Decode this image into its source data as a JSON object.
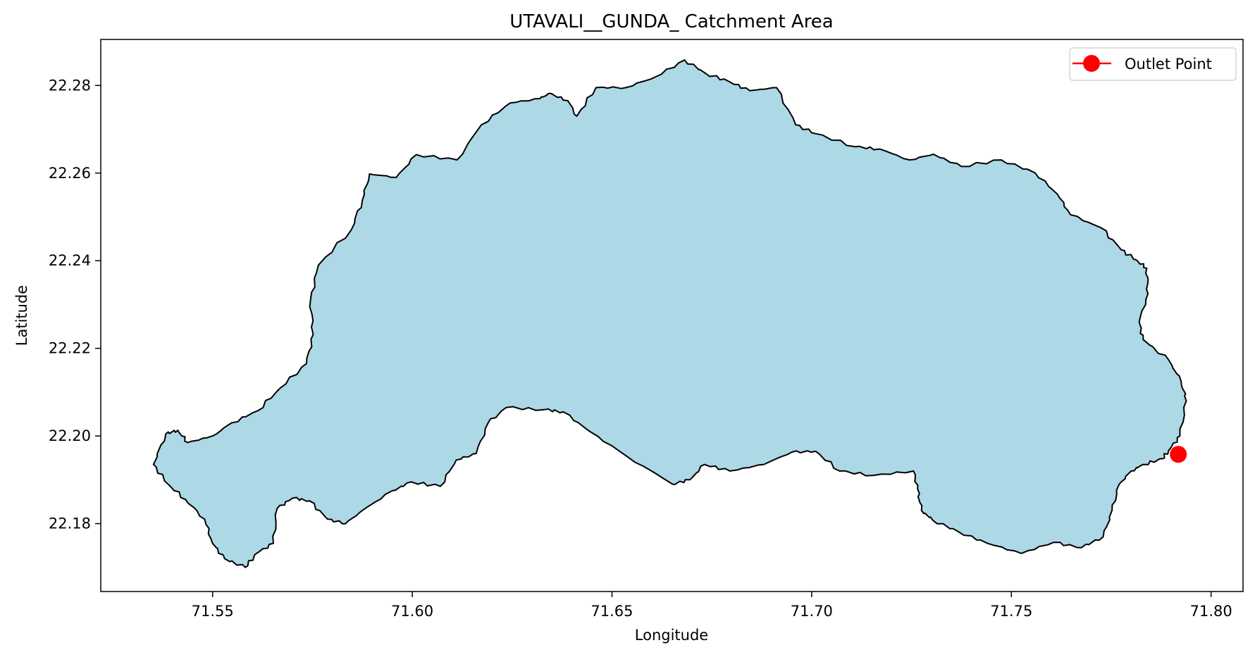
{
  "chart_data": {
    "type": "map",
    "title": "UTAVALI__GUNDA_ Catchment Area",
    "xlabel": "Longitude",
    "ylabel": "Latitude",
    "xlim": [
      71.522,
      71.808
    ],
    "ylim": [
      22.1645,
      22.2905
    ],
    "x_ticks": [
      71.55,
      71.6,
      71.65,
      71.7,
      71.75,
      71.8
    ],
    "x_tick_labels": [
      "71.55",
      "71.60",
      "71.65",
      "71.70",
      "71.75",
      "71.80"
    ],
    "y_ticks": [
      22.18,
      22.2,
      22.22,
      22.24,
      22.26,
      22.28
    ],
    "y_tick_labels": [
      "22.18",
      "22.20",
      "22.22",
      "22.24",
      "22.26",
      "22.28"
    ],
    "grid": false,
    "legend": {
      "placement": "top-right",
      "entries": [
        {
          "label": "Outlet Point",
          "color": "#ff0000",
          "marker": "circle"
        }
      ]
    },
    "catchment": {
      "fill": "#add8e6",
      "stroke": "#000000",
      "boundary": [
        [
          71.5352,
          22.1935
        ],
        [
          71.5383,
          22.2005
        ],
        [
          71.5413,
          22.2013
        ],
        [
          71.5438,
          22.1985
        ],
        [
          71.55,
          22.2
        ],
        [
          71.5548,
          22.203
        ],
        [
          71.5612,
          22.2057
        ],
        [
          71.567,
          22.211
        ],
        [
          71.5735,
          22.2165
        ],
        [
          71.5752,
          22.2232
        ],
        [
          71.5745,
          22.231
        ],
        [
          71.5765,
          22.239
        ],
        [
          71.5847,
          22.247
        ],
        [
          71.5875,
          22.2538
        ],
        [
          71.5893,
          22.2598
        ],
        [
          71.596,
          22.259
        ],
        [
          71.601,
          22.2642
        ],
        [
          71.6112,
          22.263
        ],
        [
          71.6173,
          22.271
        ],
        [
          71.6245,
          22.276
        ],
        [
          71.632,
          22.277
        ],
        [
          71.6343,
          22.2782
        ],
        [
          71.639,
          22.2765
        ],
        [
          71.6412,
          22.273
        ],
        [
          71.646,
          22.2795
        ],
        [
          71.6535,
          22.2795
        ],
        [
          71.661,
          22.282
        ],
        [
          71.6682,
          22.2858
        ],
        [
          71.6735,
          22.2827
        ],
        [
          71.6795,
          22.2808
        ],
        [
          71.6845,
          22.2788
        ],
        [
          71.6912,
          22.2795
        ],
        [
          71.696,
          22.271
        ],
        [
          71.701,
          22.269
        ],
        [
          71.711,
          22.266
        ],
        [
          71.717,
          22.2655
        ],
        [
          71.7245,
          22.263
        ],
        [
          71.7305,
          22.2643
        ],
        [
          71.7375,
          22.2615
        ],
        [
          71.7475,
          22.263
        ],
        [
          71.756,
          22.26
        ],
        [
          71.7615,
          22.2552
        ],
        [
          71.7648,
          22.2505
        ],
        [
          71.7725,
          22.2475
        ],
        [
          71.7775,
          22.2425
        ],
        [
          71.7812,
          22.2402
        ],
        [
          71.7839,
          22.2383
        ],
        [
          71.7842,
          22.2325
        ],
        [
          71.782,
          22.226
        ],
        [
          71.783,
          22.222
        ],
        [
          71.7895,
          22.2172
        ],
        [
          71.7925,
          22.2125
        ],
        [
          71.7938,
          22.208
        ],
        [
          71.7922,
          22.2
        ],
        [
          71.7897,
          22.197
        ],
        [
          71.7878,
          22.1948
        ],
        [
          71.783,
          22.1935
        ],
        [
          71.78,
          22.192
        ],
        [
          71.777,
          22.189
        ],
        [
          71.7752,
          22.183
        ],
        [
          71.773,
          22.177
        ],
        [
          71.7675,
          22.1745
        ],
        [
          71.7605,
          22.1757
        ],
        [
          71.7525,
          22.1732
        ],
        [
          71.744,
          22.1755
        ],
        [
          71.737,
          22.178
        ],
        [
          71.7303,
          22.1808
        ],
        [
          71.7275,
          22.183
        ],
        [
          71.7265,
          22.188
        ],
        [
          71.7255,
          22.192
        ],
        [
          71.7155,
          22.191
        ],
        [
          71.707,
          22.192
        ],
        [
          71.701,
          22.1965
        ],
        [
          71.695,
          22.1963
        ],
        [
          71.688,
          22.1935
        ],
        [
          71.6795,
          22.192
        ],
        [
          71.6732,
          22.1935
        ],
        [
          71.6695,
          22.19
        ],
        [
          71.6652,
          22.189
        ],
        [
          71.6535,
          22.1955
        ],
        [
          71.6445,
          22.201
        ],
        [
          71.6378,
          22.2055
        ],
        [
          71.633,
          22.206
        ],
        [
          71.6235,
          22.2065
        ],
        [
          71.619,
          22.203
        ],
        [
          71.616,
          22.196
        ],
        [
          71.611,
          22.1945
        ],
        [
          71.607,
          22.1885
        ],
        [
          71.5998,
          22.1895
        ],
        [
          71.595,
          22.1875
        ],
        [
          71.5875,
          22.183
        ],
        [
          71.5833,
          22.18
        ],
        [
          71.5788,
          22.181
        ],
        [
          71.5742,
          22.1852
        ],
        [
          71.57,
          22.1858
        ],
        [
          71.5662,
          22.1835
        ],
        [
          71.5652,
          22.1755
        ],
        [
          71.561,
          22.1732
        ],
        [
          71.5582,
          22.17
        ],
        [
          71.553,
          22.172
        ],
        [
          71.55,
          22.1755
        ],
        [
          71.548,
          22.181
        ],
        [
          71.5432,
          22.1855
        ],
        [
          71.5386,
          22.1892
        ]
      ]
    },
    "outlet_point": {
      "label": "Outlet Point",
      "x": 71.7918,
      "y": 22.1958,
      "color": "#ff0000"
    }
  }
}
